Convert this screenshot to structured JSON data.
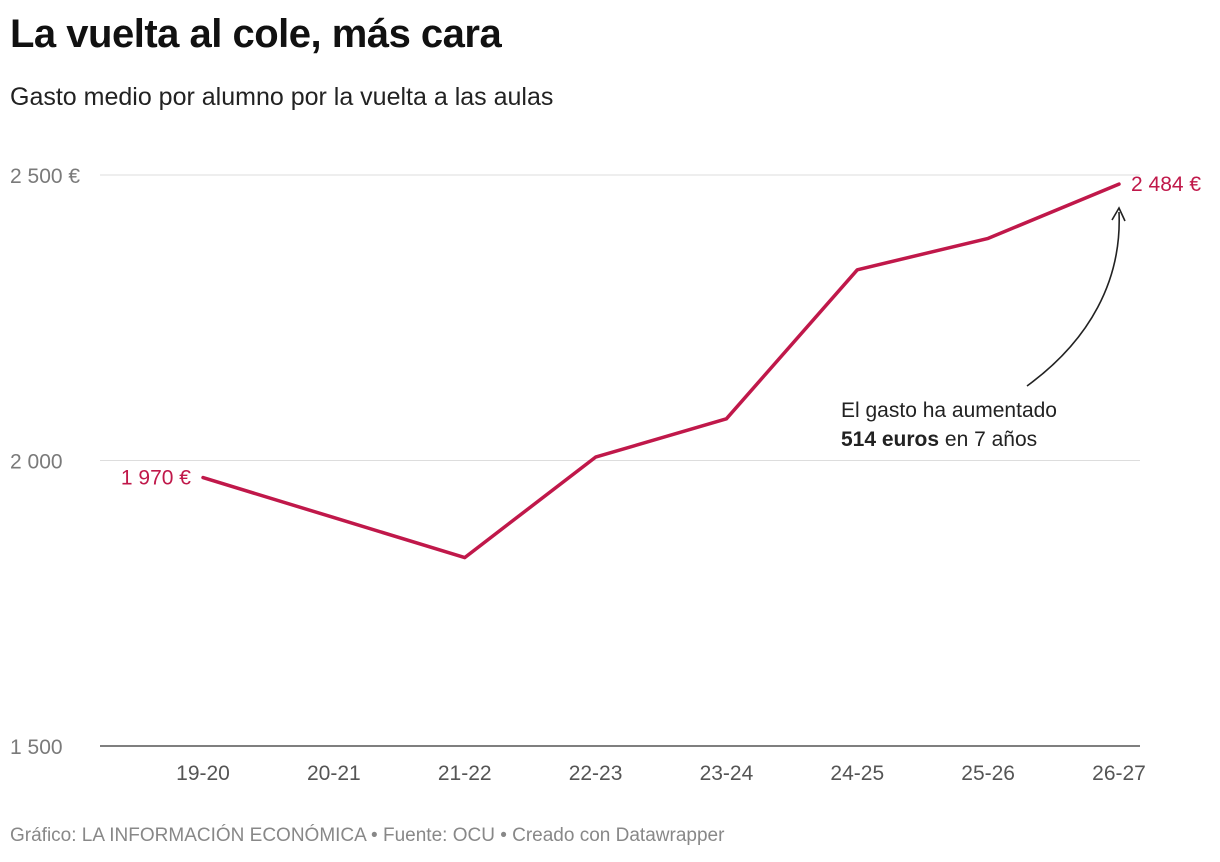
{
  "chart_data": {
    "type": "line",
    "title": "La vuelta al cole, más cara",
    "subtitle": "Gasto medio por alumno por la vuelta a las aulas",
    "categories": [
      "19-20",
      "20-21",
      "21-22",
      "22-23",
      "23-24",
      "24-25",
      "25-26",
      "26-27"
    ],
    "series": [
      {
        "values": [
          1970,
          1900,
          1830,
          2006,
          2073,
          2334,
          2389,
          2484
        ]
      }
    ],
    "ylim": [
      1500,
      2500
    ],
    "y_ticks": [
      1500,
      2000,
      2500
    ],
    "y_tick_labels": [
      "1 500",
      "2 000",
      "2 500 €"
    ],
    "grid": true,
    "value_labels": {
      "first": "1 970 €",
      "last": "2 484 €"
    },
    "annotation": {
      "line1": "El gasto ha aumentado",
      "bold": "514 euros",
      "rest": " en 7 años"
    },
    "colors": {
      "line": "#c0184a",
      "grid": "#dddddd",
      "axis": "#333333"
    }
  },
  "footer": "Gráfico: LA INFORMACIÓN ECONÓMICA • Fuente: OCU • Creado con Datawrapper"
}
